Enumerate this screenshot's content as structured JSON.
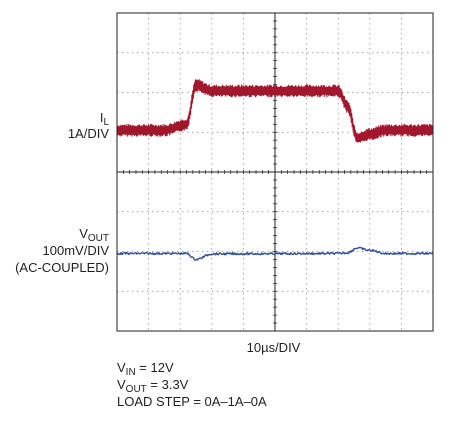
{
  "chart_data": {
    "type": "line",
    "title": "",
    "grid": true,
    "x_divisions": 10,
    "y_divisions": 8,
    "xscale_label": "10µs/DIV",
    "x": [
      0,
      1.5,
      2.2,
      2.5,
      3.0,
      7.0,
      7.3,
      7.6,
      8.0,
      8.5,
      10.0
    ],
    "series": [
      {
        "name": "IL",
        "label_main": "I",
        "label_sub": "L",
        "scale": "1A/DIV",
        "color": "#a3172d",
        "values": [
          0,
          0,
          0.15,
          1.15,
          1.0,
          1.0,
          0.6,
          -0.2,
          -0.1,
          0.0,
          0.0
        ]
      },
      {
        "name": "VOUT",
        "label_main": "V",
        "label_sub": "OUT",
        "scale": "100mV/DIV",
        "note": "(AC-COUPLED)",
        "color": "#2f4f9a",
        "values": [
          0,
          0,
          0,
          -0.15,
          -0.01,
          0,
          0.02,
          0.14,
          0.08,
          0.0,
          0.0
        ]
      }
    ]
  },
  "conditions": {
    "vin_main": "V",
    "vin_sub": "IN",
    "vin_value": " = 12V",
    "vout_main": "V",
    "vout_sub": "OUT",
    "vout_value": " = 3.3V",
    "load_step": "LOAD STEP = 0A–1A–0A"
  }
}
